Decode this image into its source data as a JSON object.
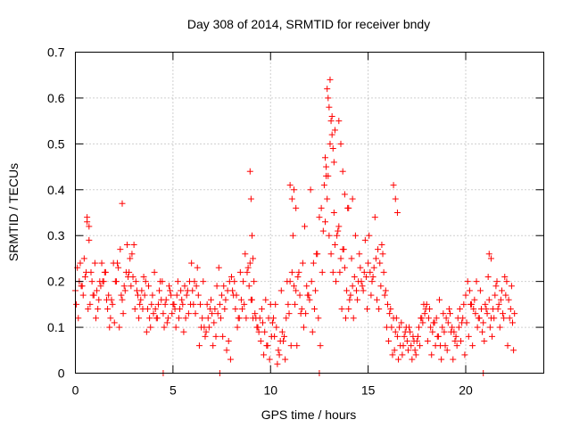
{
  "chart_data": {
    "type": "scatter",
    "title": "Day 308 of 2014, SRMTID for receiver bndy",
    "xlabel": "GPS time / hours",
    "ylabel": "SRMTID / TECUs",
    "xlim": [
      0,
      24
    ],
    "ylim": [
      0,
      0.7
    ],
    "xticks": [
      0,
      5,
      10,
      15,
      20
    ],
    "xtick_labels": [
      "0",
      "5",
      "10",
      "15",
      "20"
    ],
    "yticks": [
      0,
      0.1,
      0.2,
      0.3,
      0.4,
      0.5,
      0.6,
      0.7
    ],
    "ytick_labels": [
      "0",
      "0.1",
      "0.2",
      "0.3",
      "0.4",
      "0.5",
      "0.6",
      "0.7"
    ],
    "grid": true,
    "marker": "+",
    "color": "#ff0000",
    "series": [
      {
        "name": "SRMTID",
        "x": [
          0.0,
          0.1,
          0.2,
          0.3,
          0.4,
          0.5,
          0.6,
          0.7,
          0.8,
          0.9,
          1.0,
          1.1,
          1.2,
          1.3,
          1.4,
          1.5,
          1.6,
          1.7,
          1.8,
          1.9,
          2.0,
          2.1,
          2.2,
          2.3,
          2.4,
          2.5,
          2.6,
          2.7,
          2.8,
          2.9,
          3.0,
          3.1,
          3.2,
          3.3,
          3.4,
          3.5,
          3.6,
          3.7,
          3.8,
          3.9,
          4.0,
          4.1,
          4.2,
          4.3,
          4.4,
          4.5,
          4.6,
          4.7,
          4.8,
          4.9,
          5.0,
          5.1,
          5.2,
          5.3,
          5.4,
          5.5,
          5.6,
          5.7,
          5.8,
          5.9,
          6.0,
          6.1,
          6.2,
          6.3,
          6.4,
          6.5,
          6.6,
          6.7,
          6.8,
          6.9,
          7.0,
          7.1,
          7.2,
          7.3,
          7.4,
          7.5,
          7.6,
          7.7,
          7.8,
          7.9,
          8.0,
          8.1,
          8.2,
          8.3,
          8.4,
          8.5,
          8.6,
          8.7,
          8.8,
          8.9,
          9.0,
          9.1,
          9.2,
          9.3,
          9.4,
          9.5,
          9.6,
          9.7,
          9.8,
          9.9,
          10.0,
          10.1,
          10.2,
          10.3,
          10.4,
          10.5,
          10.6,
          10.7,
          10.8,
          10.9,
          11.0,
          11.1,
          11.2,
          11.3,
          11.4,
          11.5,
          11.6,
          11.7,
          11.8,
          11.9,
          12.0,
          12.1,
          12.2,
          12.3,
          12.4,
          12.5,
          12.6,
          12.7,
          12.8,
          12.9,
          13.0,
          13.1,
          13.2,
          13.3,
          13.4,
          13.5,
          13.6,
          13.7,
          13.8,
          13.9,
          14.0,
          14.1,
          14.2,
          14.3,
          14.4,
          14.5,
          14.6,
          14.7,
          14.8,
          14.9,
          15.0,
          15.1,
          15.2,
          15.3,
          15.4,
          15.5,
          15.6,
          15.7,
          15.8,
          15.9,
          16.0,
          16.1,
          16.2,
          16.3,
          16.4,
          16.5,
          16.6,
          16.7,
          16.8,
          16.9,
          17.0,
          17.1,
          17.2,
          17.3,
          17.4,
          17.5,
          17.6,
          17.7,
          17.8,
          17.9,
          18.0,
          18.1,
          18.2,
          18.3,
          18.4,
          18.5,
          18.6,
          18.7,
          18.8,
          18.9,
          19.0,
          19.1,
          19.2,
          19.3,
          19.4,
          19.5,
          19.6,
          19.7,
          19.8,
          19.9,
          20.0,
          20.1,
          20.2,
          20.3,
          20.4,
          20.5,
          20.6,
          20.7,
          20.8,
          20.9,
          21.0,
          21.1,
          21.2,
          21.3,
          21.4,
          21.5,
          21.6,
          21.7,
          21.8,
          21.9,
          22.0,
          22.1,
          22.2,
          22.3,
          22.4,
          22.5,
          0.05,
          0.15,
          0.25,
          0.35,
          0.45,
          0.55,
          0.65,
          0.75,
          0.85,
          0.95,
          1.05,
          1.15,
          1.25,
          1.35,
          1.45,
          1.55,
          1.65,
          1.75,
          1.85,
          1.95,
          2.05,
          2.15,
          2.25,
          2.35,
          2.45,
          2.55,
          2.65,
          2.75,
          2.85,
          2.95,
          3.05,
          3.15,
          3.25,
          3.35,
          3.45,
          3.55,
          3.65,
          3.75,
          3.85,
          3.95,
          4.05,
          4.15,
          4.25,
          4.35,
          4.45,
          4.55,
          4.65,
          4.75,
          4.85,
          4.95,
          5.05,
          5.15,
          5.25,
          5.35,
          5.45,
          5.55,
          5.65,
          5.75,
          5.85,
          5.95,
          6.05,
          6.15,
          6.25,
          6.35,
          6.45,
          6.55,
          6.65,
          6.75,
          6.85,
          6.95,
          7.05,
          7.15,
          7.25,
          7.35,
          7.45,
          7.55,
          7.65,
          7.75,
          7.85,
          7.95,
          8.05,
          8.15,
          8.25,
          8.35,
          8.45,
          8.55,
          8.65,
          8.75,
          8.85,
          8.95,
          9.05,
          9.15,
          9.25,
          9.35,
          9.45,
          9.55,
          9.65,
          9.75,
          9.85,
          9.95,
          10.05,
          10.15,
          10.25,
          10.35,
          10.45,
          10.55,
          10.65,
          10.75,
          10.85,
          10.95,
          11.05,
          11.15,
          11.25,
          11.35,
          11.45,
          11.55,
          11.65,
          11.75,
          11.85,
          11.95,
          12.05,
          12.15,
          12.25,
          12.35,
          12.45,
          12.55,
          12.65,
          12.75,
          12.85,
          12.95,
          13.05,
          13.15,
          13.25,
          13.35,
          13.45,
          13.55,
          13.65,
          13.75,
          13.85,
          13.95,
          14.05,
          14.15,
          14.25,
          14.35,
          14.45,
          14.55,
          14.65,
          14.75,
          14.85,
          14.95,
          15.05,
          15.15,
          15.25,
          15.35,
          15.45,
          15.55,
          15.65,
          15.75,
          15.85,
          15.95,
          16.05,
          16.15,
          16.25,
          16.35,
          16.45,
          16.55,
          16.65,
          16.75,
          16.85,
          16.95,
          17.05,
          17.15,
          17.25,
          17.35,
          17.45,
          17.55,
          17.65,
          17.75,
          17.85,
          17.95,
          18.05,
          18.15,
          18.25,
          18.35,
          18.45,
          18.55,
          18.65,
          18.75,
          18.85,
          18.95,
          19.05,
          19.15,
          19.25,
          19.35,
          19.45,
          19.55,
          19.65,
          19.75,
          19.85,
          19.95,
          20.05,
          20.15,
          20.25,
          20.35,
          20.45,
          20.55,
          20.65,
          20.75,
          20.85,
          20.95,
          21.05,
          21.15,
          21.25,
          21.35,
          21.45,
          21.55,
          21.65,
          21.75,
          21.85,
          21.95,
          22.05,
          22.15,
          22.25,
          22.35,
          22.45,
          8.95,
          9.0,
          9.05,
          9.1,
          11.0,
          11.1,
          11.2,
          11.3,
          12.9,
          12.95,
          13.0,
          13.05,
          13.1,
          13.15,
          13.2,
          12.8,
          12.85,
          13.25,
          13.3,
          13.5,
          13.6,
          13.7,
          13.8,
          14.0,
          14.2,
          16.3,
          16.4,
          16.5,
          21.2,
          21.3,
          2.4,
          0.6,
          0.7,
          4.5,
          7.4,
          12.5,
          20.9
        ],
        "y": [
          0.18,
          0.23,
          0.2,
          0.19,
          0.17,
          0.21,
          0.33,
          0.29,
          0.22,
          0.17,
          0.24,
          0.18,
          0.16,
          0.19,
          0.2,
          0.22,
          0.16,
          0.17,
          0.12,
          0.15,
          0.11,
          0.2,
          0.23,
          0.27,
          0.16,
          0.19,
          0.22,
          0.21,
          0.25,
          0.26,
          0.28,
          0.2,
          0.17,
          0.15,
          0.18,
          0.21,
          0.2,
          0.14,
          0.12,
          0.15,
          0.13,
          0.14,
          0.12,
          0.18,
          0.16,
          0.13,
          0.15,
          0.11,
          0.19,
          0.17,
          0.15,
          0.14,
          0.17,
          0.12,
          0.18,
          0.15,
          0.19,
          0.17,
          0.13,
          0.15,
          0.18,
          0.2,
          0.19,
          0.17,
          0.15,
          0.12,
          0.1,
          0.09,
          0.12,
          0.14,
          0.13,
          0.11,
          0.08,
          0.13,
          0.15,
          0.17,
          0.19,
          0.16,
          0.18,
          0.2,
          0.21,
          0.17,
          0.14,
          0.1,
          0.12,
          0.16,
          0.2,
          0.26,
          0.22,
          0.19,
          0.16,
          0.12,
          0.13,
          0.1,
          0.09,
          0.07,
          0.11,
          0.09,
          0.06,
          0.12,
          0.15,
          0.11,
          0.08,
          0.1,
          0.05,
          0.07,
          0.09,
          0.08,
          0.12,
          0.15,
          0.2,
          0.22,
          0.19,
          0.18,
          0.21,
          0.17,
          0.14,
          0.1,
          0.13,
          0.17,
          0.16,
          0.2,
          0.24,
          0.18,
          0.26,
          0.34,
          0.36,
          0.31,
          0.33,
          0.38,
          0.3,
          0.26,
          0.22,
          0.28,
          0.3,
          0.32,
          0.25,
          0.27,
          0.23,
          0.18,
          0.14,
          0.17,
          0.19,
          0.21,
          0.18,
          0.2,
          0.23,
          0.19,
          0.22,
          0.21,
          0.24,
          0.22,
          0.2,
          0.23,
          0.25,
          0.27,
          0.24,
          0.28,
          0.22,
          0.18,
          0.15,
          0.13,
          0.1,
          0.12,
          0.09,
          0.08,
          0.1,
          0.11,
          0.06,
          0.09,
          0.07,
          0.1,
          0.06,
          0.08,
          0.05,
          0.07,
          0.1,
          0.12,
          0.11,
          0.13,
          0.15,
          0.12,
          0.1,
          0.09,
          0.11,
          0.12,
          0.08,
          0.06,
          0.1,
          0.09,
          0.12,
          0.11,
          0.13,
          0.1,
          0.09,
          0.08,
          0.12,
          0.14,
          0.11,
          0.15,
          0.17,
          0.2,
          0.18,
          0.15,
          0.14,
          0.13,
          0.1,
          0.12,
          0.14,
          0.11,
          0.15,
          0.13,
          0.16,
          0.12,
          0.14,
          0.17,
          0.2,
          0.15,
          0.16,
          0.13,
          0.21,
          0.2,
          0.16,
          0.14,
          0.11,
          0.13,
          0.15,
          0.12,
          0.24,
          0.19,
          0.25,
          0.22,
          0.14,
          0.15,
          0.2,
          0.17,
          0.12,
          0.14,
          0.2,
          0.24,
          0.2,
          0.22,
          0.14,
          0.1,
          0.16,
          0.24,
          0.2,
          0.24,
          0.1,
          0.17,
          0.13,
          0.18,
          0.28,
          0.22,
          0.19,
          0.21,
          0.14,
          0.18,
          0.12,
          0.16,
          0.14,
          0.17,
          0.09,
          0.19,
          0.1,
          0.17,
          0.22,
          0.12,
          0.15,
          0.2,
          0.2,
          0.1,
          0.16,
          0.12,
          0.18,
          0.13,
          0.15,
          0.1,
          0.2,
          0.14,
          0.16,
          0.09,
          0.12,
          0.18,
          0.2,
          0.24,
          0.15,
          0.13,
          0.23,
          0.06,
          0.1,
          0.2,
          0.08,
          0.15,
          0.1,
          0.16,
          0.06,
          0.14,
          0.19,
          0.23,
          0.12,
          0.08,
          0.14,
          0.05,
          0.07,
          0.03,
          0.18,
          0.2,
          0.17,
          0.12,
          0.22,
          0.14,
          0.15,
          0.12,
          0.23,
          0.24,
          0.16,
          0.2,
          0.12,
          0.1,
          0.12,
          0.14,
          0.04,
          0.16,
          0.06,
          0.03,
          0.08,
          0.12,
          0.15,
          0.02,
          0.04,
          0.18,
          0.07,
          0.03,
          0.2,
          0.13,
          0.06,
          0.3,
          0.15,
          0.06,
          0.22,
          0.13,
          0.24,
          0.32,
          0.19,
          0.17,
          0.4,
          0.09,
          0.14,
          0.26,
          0.12,
          0.06,
          0.22,
          0.41,
          0.45,
          0.43,
          0.5,
          0.56,
          0.35,
          0.2,
          0.31,
          0.22,
          0.14,
          0.27,
          0.12,
          0.36,
          0.16,
          0.25,
          0.12,
          0.3,
          0.16,
          0.26,
          0.2,
          0.18,
          0.29,
          0.14,
          0.3,
          0.17,
          0.21,
          0.34,
          0.16,
          0.14,
          0.19,
          0.26,
          0.17,
          0.1,
          0.07,
          0.14,
          0.04,
          0.05,
          0.12,
          0.03,
          0.06,
          0.04,
          0.08,
          0.1,
          0.05,
          0.09,
          0.03,
          0.07,
          0.04,
          0.08,
          0.06,
          0.12,
          0.15,
          0.14,
          0.07,
          0.14,
          0.04,
          0.11,
          0.06,
          0.08,
          0.16,
          0.03,
          0.13,
          0.06,
          0.05,
          0.14,
          0.09,
          0.03,
          0.07,
          0.06,
          0.1,
          0.07,
          0.12,
          0.04,
          0.11,
          0.08,
          0.15,
          0.06,
          0.16,
          0.2,
          0.12,
          0.18,
          0.09,
          0.07,
          0.14,
          0.21,
          0.1,
          0.08,
          0.12,
          0.19,
          0.14,
          0.1,
          0.18,
          0.12,
          0.17,
          0.06,
          0.12,
          0.19,
          0.05,
          0.44,
          0.38,
          0.3,
          0.25,
          0.41,
          0.38,
          0.4,
          0.36,
          0.62,
          0.6,
          0.58,
          0.64,
          0.55,
          0.52,
          0.49,
          0.47,
          0.43,
          0.46,
          0.53,
          0.55,
          0.5,
          0.44,
          0.39,
          0.36,
          0.38,
          0.41,
          0.38,
          0.35,
          0.26,
          0.25,
          0.37,
          0.34,
          0.32,
          0.0,
          0.0,
          0.0,
          0.0
        ]
      }
    ]
  }
}
